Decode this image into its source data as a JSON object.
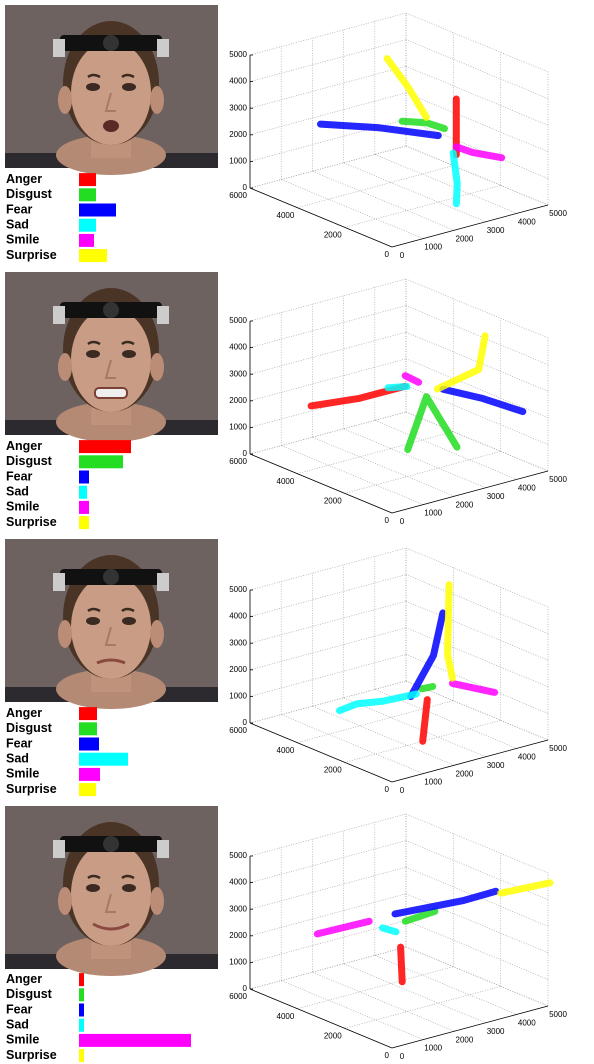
{
  "chart_data": [
    {
      "type": "bar",
      "orientation": "horizontal",
      "categories": [
        "Anger",
        "Disgust",
        "Fear",
        "Sad",
        "Smile",
        "Surprise"
      ],
      "values": [
        17,
        17,
        37,
        17,
        15,
        28
      ],
      "colors": [
        "#ff0000",
        "#22dd22",
        "#0000ff",
        "#00ffff",
        "#ff00ff",
        "#ffff00"
      ]
    },
    {
      "type": "scatter3d",
      "xlim": [
        0,
        5000
      ],
      "ylim": [
        0,
        6000
      ],
      "zlim": [
        0,
        5000
      ],
      "xticks": [
        0,
        1000,
        2000,
        3000,
        4000,
        5000
      ],
      "yticks": [
        0,
        2000,
        4000,
        6000
      ],
      "zticks": [
        0,
        1000,
        2000,
        3000,
        4000,
        5000
      ],
      "grid": true,
      "series": [
        {
          "color": "#ff0000",
          "x": [
            3200,
            3200,
            3200
          ],
          "y": [
            1500,
            1500,
            1500
          ],
          "z": [
            4000,
            3000,
            1900
          ]
        },
        {
          "color": "#22dd22",
          "x": [
            2600,
            3000,
            3200
          ],
          "y": [
            3000,
            2500,
            2000
          ],
          "z": [
            2800,
            2800,
            2700
          ]
        },
        {
          "color": "#0000ff",
          "x": [
            1500,
            2200,
            3000
          ],
          "y": [
            5000,
            3500,
            2000
          ],
          "z": [
            2300,
            2500,
            2500
          ]
        },
        {
          "color": "#00ffff",
          "x": [
            3100,
            3000,
            2900
          ],
          "y": [
            1500,
            1200,
            1100
          ],
          "z": [
            2000,
            1000,
            300
          ]
        },
        {
          "color": "#ff00ff",
          "x": [
            3200,
            3500,
            4200
          ],
          "y": [
            1500,
            1200,
            900
          ],
          "z": [
            2200,
            2000,
            1700
          ]
        },
        {
          "color": "#ffff00",
          "x": [
            3000,
            2800,
            2500
          ],
          "y": [
            2500,
            3000,
            3500
          ],
          "z": [
            3000,
            4000,
            5000
          ]
        }
      ]
    },
    {
      "type": "bar",
      "orientation": "horizontal",
      "categories": [
        "Anger",
        "Disgust",
        "Fear",
        "Sad",
        "Smile",
        "Surprise"
      ],
      "values": [
        52,
        44,
        10,
        8,
        10,
        10
      ],
      "colors": [
        "#ff0000",
        "#22dd22",
        "#0000ff",
        "#00ffff",
        "#ff00ff",
        "#ffff00"
      ]
    },
    {
      "type": "scatter3d",
      "xlim": [
        0,
        5000
      ],
      "ylim": [
        0,
        6000
      ],
      "zlim": [
        0,
        5000
      ],
      "xticks": [
        0,
        1000,
        2000,
        3000,
        4000,
        5000
      ],
      "yticks": [
        0,
        2000,
        4000,
        6000
      ],
      "zticks": [
        0,
        1000,
        2000,
        3000,
        4000,
        5000
      ],
      "grid": true,
      "series": [
        {
          "color": "#ff0000",
          "x": [
            1200,
            2000,
            2700
          ],
          "y": [
            5000,
            4000,
            3000
          ],
          "z": [
            1800,
            2200,
            2800
          ]
        },
        {
          "color": "#22dd22",
          "x": [
            2400,
            3000,
            3600
          ],
          "y": [
            2500,
            2500,
            2000
          ],
          "z": [
            700,
            2500,
            600
          ]
        },
        {
          "color": "#0000ff",
          "x": [
            3300,
            4000,
            4800
          ],
          "y": [
            2200,
            1500,
            800
          ],
          "z": [
            2800,
            2500,
            2000
          ]
        },
        {
          "color": "#00ffff",
          "x": [
            2300,
            2600
          ],
          "y": [
            3200,
            2800
          ],
          "z": [
            2800,
            2900
          ]
        },
        {
          "color": "#ff00ff",
          "x": [
            2700,
            2900
          ],
          "y": [
            3000,
            2700
          ],
          "z": [
            3200,
            3000
          ]
        },
        {
          "color": "#ffff00",
          "x": [
            3200,
            4300,
            4500
          ],
          "y": [
            2300,
            2000,
            2000
          ],
          "z": [
            2800,
            3300,
            4500
          ]
        }
      ]
    },
    {
      "type": "bar",
      "orientation": "horizontal",
      "categories": [
        "Anger",
        "Disgust",
        "Fear",
        "Sad",
        "Smile",
        "Surprise"
      ],
      "values": [
        18,
        18,
        20,
        49,
        21,
        17
      ],
      "colors": [
        "#ff0000",
        "#22dd22",
        "#0000ff",
        "#00ffff",
        "#ff00ff",
        "#ffff00"
      ]
    },
    {
      "type": "scatter3d",
      "xlim": [
        0,
        5000
      ],
      "ylim": [
        0,
        6000
      ],
      "zlim": [
        0,
        5000
      ],
      "xticks": [
        0,
        1000,
        2000,
        3000,
        4000,
        5000
      ],
      "yticks": [
        0,
        2000,
        4000,
        6000
      ],
      "zticks": [
        0,
        1000,
        2000,
        3000,
        4000,
        5000
      ],
      "grid": true,
      "series": [
        {
          "color": "#ff0000",
          "x": [
            2800,
            2500
          ],
          "y": [
            2200,
            2000
          ],
          "z": [
            1400,
            0
          ]
        },
        {
          "color": "#22dd22",
          "x": [
            2700,
            2900
          ],
          "y": [
            2300,
            2100
          ],
          "z": [
            1800,
            1900
          ]
        },
        {
          "color": "#0000ff",
          "x": [
            2500,
            3000,
            3300
          ],
          "y": [
            2500,
            2200,
            2200
          ],
          "z": [
            1500,
            3000,
            4500
          ]
        },
        {
          "color": "#00ffff",
          "x": [
            2600,
            2000,
            1600,
            1200
          ],
          "y": [
            2400,
            3000,
            3600,
            3800
          ],
          "z": [
            1600,
            1300,
            1100,
            900
          ]
        },
        {
          "color": "#ff00ff",
          "x": [
            3300,
            4200
          ],
          "y": [
            1800,
            1200
          ],
          "z": [
            2000,
            1600
          ]
        },
        {
          "color": "#ffff00",
          "x": [
            3300,
            3300,
            3500
          ],
          "y": [
            1800,
            2000,
            2200
          ],
          "z": [
            2200,
            3000,
            5500
          ]
        }
      ]
    },
    {
      "type": "bar",
      "orientation": "horizontal",
      "categories": [
        "Anger",
        "Disgust",
        "Fear",
        "Sad",
        "Smile",
        "Surprise"
      ],
      "values": [
        5,
        5,
        5,
        5,
        112,
        5
      ],
      "colors": [
        "#ff0000",
        "#22dd22",
        "#0000ff",
        "#00ffff",
        "#ff00ff",
        "#ffff00"
      ]
    },
    {
      "type": "scatter3d",
      "xlim": [
        0,
        5000
      ],
      "ylim": [
        0,
        6000
      ],
      "zlim": [
        0,
        5000
      ],
      "xticks": [
        0,
        1000,
        2000,
        3000,
        4000,
        5000
      ],
      "yticks": [
        0,
        2000,
        4000,
        6000
      ],
      "zticks": [
        0,
        1000,
        2000,
        3000,
        4000,
        5000
      ],
      "grid": true,
      "series": [
        {
          "color": "#ff0000",
          "x": [
            2400,
            2300
          ],
          "y": [
            2800,
            2600
          ],
          "z": [
            2000,
            800
          ]
        },
        {
          "color": "#22dd22",
          "x": [
            2700,
            3500
          ],
          "y": [
            3000,
            2800
          ],
          "z": [
            2800,
            3000
          ]
        },
        {
          "color": "#0000ff",
          "x": [
            2600,
            4200,
            5000
          ],
          "y": [
            3300,
            2500,
            2200
          ],
          "z": [
            3000,
            3300,
            3500
          ]
        },
        {
          "color": "#00ffff",
          "x": [
            2200,
            2400
          ],
          "y": [
            3300,
            3000
          ],
          "z": [
            2600,
            2500
          ]
        },
        {
          "color": "#ff00ff",
          "x": [
            1400,
            2000
          ],
          "y": [
            5000,
            3600
          ],
          "z": [
            2000,
            2800
          ]
        },
        {
          "color": "#ffff00",
          "x": [
            5000,
            6200
          ],
          "y": [
            2000,
            1500
          ],
          "z": [
            3500,
            3700
          ]
        }
      ]
    }
  ]
}
